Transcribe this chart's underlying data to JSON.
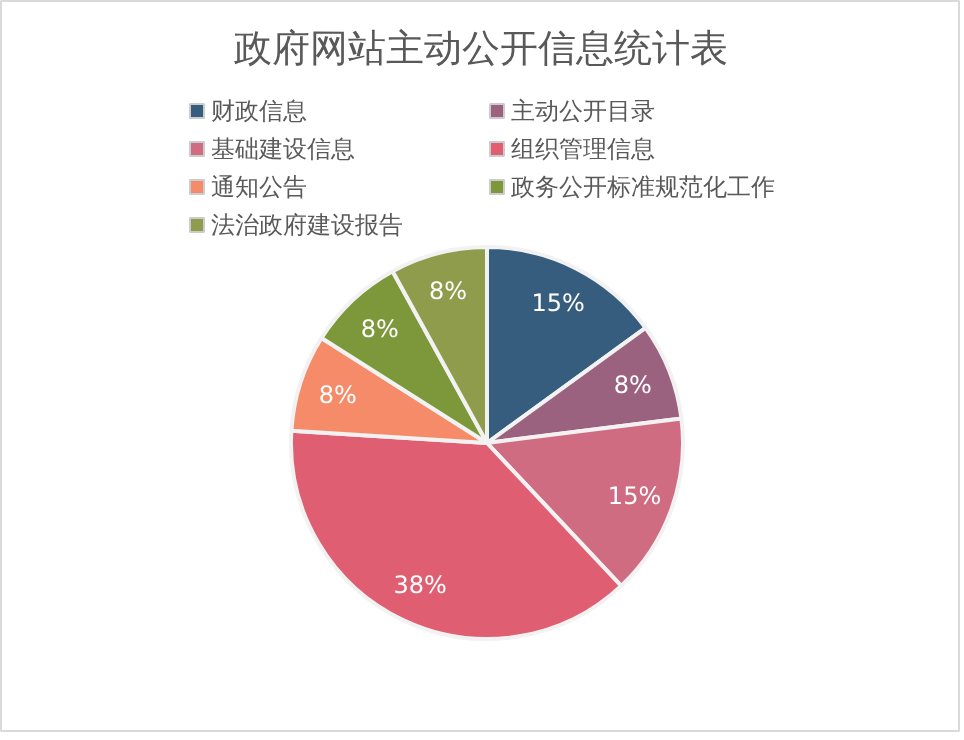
{
  "chart_data": {
    "type": "pie",
    "title": "政府网站主动公开信息统计表",
    "categories": [
      "财政信息",
      "主动公开目录",
      "基础建设信息",
      "组织管理信息",
      "通知公告",
      "政务公开标准规范化工作",
      "法治政府建设报告"
    ],
    "values": [
      15,
      8,
      15,
      38,
      8,
      8,
      8
    ],
    "value_labels": [
      "15%",
      "8%",
      "15%",
      "38%",
      "8%",
      "8%",
      "8%"
    ],
    "colors": [
      "#365c7e",
      "#9a627f",
      "#d06c82",
      "#df5e72",
      "#f68b69",
      "#7d983a",
      "#8e9c4c"
    ],
    "legend": "top"
  }
}
